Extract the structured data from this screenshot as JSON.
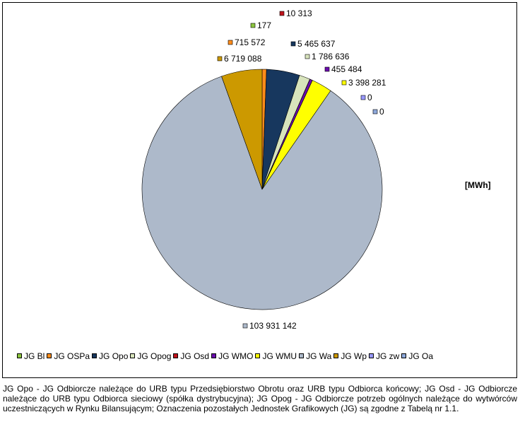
{
  "chart_data": {
    "type": "pie",
    "unit": "[MWh]",
    "start_angle_deg": 0,
    "slices": [
      {
        "name": "JG Bl",
        "value": 177,
        "label": "177",
        "color": "#8cc63f"
      },
      {
        "name": "JG OSPa",
        "value": 715572,
        "label": "715 572",
        "color": "#ff8c1a"
      },
      {
        "name": "JG Opo",
        "value": 5465637,
        "label": "5 465 637",
        "color": "#17375e"
      },
      {
        "name": "JG Opog",
        "value": 1786636,
        "label": "1 786 636",
        "color": "#d8e4bc"
      },
      {
        "name": "JG Osd",
        "value": 10313,
        "label": "10 313",
        "color": "#c0141c"
      },
      {
        "name": "JG WMO",
        "value": 455484,
        "label": "455 484",
        "color": "#6a0dad"
      },
      {
        "name": "JG WMU",
        "value": 3398281,
        "label": "3 398 281",
        "color": "#ffff00"
      },
      {
        "name": "JG zw",
        "value": 0,
        "label": "0",
        "color": "#9999ff"
      },
      {
        "name": "JG Oa",
        "value": 0,
        "label": "0",
        "color": "#8ea9db"
      },
      {
        "name": "JG Wa",
        "value": 103931142,
        "label": "103 931 142",
        "color": "#adb9ca"
      },
      {
        "name": "JG Wp",
        "value": 6719088,
        "label": "6 719 088",
        "color": "#cc9900"
      }
    ],
    "legend_order": [
      "JG Bl",
      "JG OSPa",
      "JG Opo",
      "JG Opog",
      "JG Osd",
      "JG WMO",
      "JG WMU",
      "JG Wa",
      "JG Wp",
      "JG zw",
      "JG Oa"
    ],
    "legend_placement": "bottom"
  },
  "footnote": "JG Opo - JG Odbiorcze należące do URB typu Przedsiębiorstwo Obrotu oraz URB typu Odbiorca końcowy; JG Osd - JG Odbiorcze należące do URB typu Odbiorca sieciowy (spółka dystrybucyjna); JG Opog - JG Odbiorcze potrzeb ogólnych należące do wytwórców uczestniczących w Rynku Bilansującym; Oznaczenia pozostałych Jednostek Grafikowych (JG) są zgodne z Tabelą nr 1.1."
}
